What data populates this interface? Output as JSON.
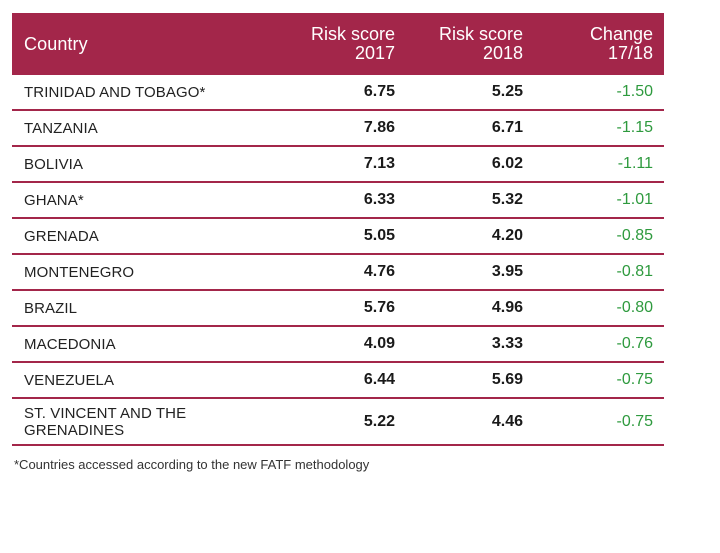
{
  "columns": [
    "Country",
    "Risk score\n2017",
    "Risk score\n2018",
    "Change\n17/18"
  ],
  "rows": [
    {
      "country": "TRINIDAD AND TOBAGO*",
      "y2017": "6.75",
      "y2018": "5.25",
      "change": "-1.50"
    },
    {
      "country": "TANZANIA",
      "y2017": "7.86",
      "y2018": "6.71",
      "change": "-1.15"
    },
    {
      "country": "BOLIVIA",
      "y2017": "7.13",
      "y2018": "6.02",
      "change": "-1.11"
    },
    {
      "country": "GHANA*",
      "y2017": "6.33",
      "y2018": "5.32",
      "change": "-1.01"
    },
    {
      "country": "GRENADA",
      "y2017": "5.05",
      "y2018": "4.20",
      "change": "-0.85"
    },
    {
      "country": "MONTENEGRO",
      "y2017": "4.76",
      "y2018": "3.95",
      "change": "-0.81"
    },
    {
      "country": "BRAZIL",
      "y2017": "5.76",
      "y2018": "4.96",
      "change": "-0.80"
    },
    {
      "country": "MACEDONIA",
      "y2017": "4.09",
      "y2018": "3.33",
      "change": "-0.76"
    },
    {
      "country": "VENEZUELA",
      "y2017": "6.44",
      "y2018": "5.69",
      "change": "-0.75"
    },
    {
      "country": "ST. VINCENT AND THE\nGRENADINES",
      "y2017": "5.22",
      "y2018": "4.46",
      "change": "-0.75"
    }
  ],
  "footnote": "*Countries accessed according to the new FATF methodology",
  "colors": {
    "header_bg": "#a3264a",
    "change_text": "#2e9a3e"
  }
}
